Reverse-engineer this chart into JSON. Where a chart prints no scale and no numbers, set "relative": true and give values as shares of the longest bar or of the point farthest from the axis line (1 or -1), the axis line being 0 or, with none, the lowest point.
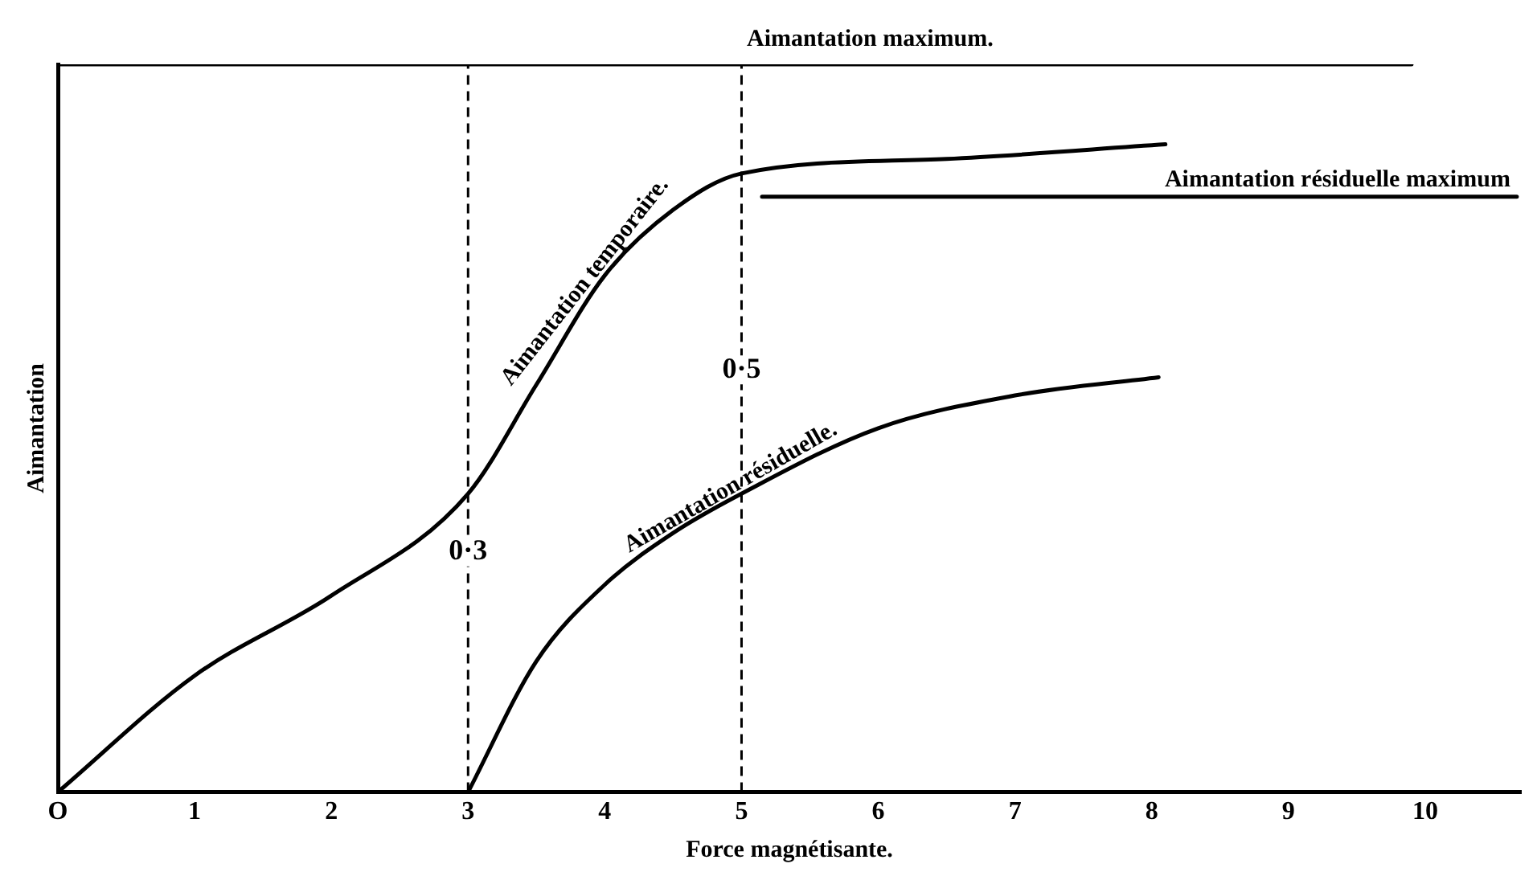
{
  "chart_data": {
    "type": "line",
    "relative": true,
    "xlabel": "Force magnétisante.",
    "ylabel": "Aimantation",
    "xlim": [
      0,
      10.7
    ],
    "xticks": [
      {
        "value": 0,
        "label": "O"
      },
      1,
      2,
      3,
      4,
      5,
      6,
      7,
      8,
      9,
      10
    ],
    "series": [
      {
        "name": "Aimantation temporaire.",
        "color": "#000000",
        "x": [
          0,
          1,
          2,
          3,
          3.5,
          4,
          4.5,
          5,
          6.5,
          8.1
        ],
        "values": [
          0,
          0.16,
          0.27,
          0.41,
          0.56,
          0.71,
          0.8,
          0.85,
          0.87,
          0.89
        ]
      },
      {
        "name": "Aimantation résiduelle.",
        "color": "#000000",
        "x": [
          3,
          3.5,
          4,
          4.5,
          5,
          6,
          7,
          8.05
        ],
        "values": [
          0,
          0.18,
          0.285,
          0.356,
          0.41,
          0.5,
          0.545,
          0.57
        ]
      },
      {
        "name": "Aimantation maximum.",
        "color": "#000000",
        "x": [
          0,
          9.9
        ],
        "values": [
          1,
          1
        ]
      },
      {
        "name": "Aimantation résiduelle maximum",
        "color": "#000000",
        "x": [
          5.15,
          10.67
        ],
        "values": [
          0.818,
          0.818
        ]
      }
    ],
    "ref_lines": [
      {
        "axis": "x",
        "value": 3,
        "label": "0·3",
        "line_style": "dashed"
      },
      {
        "axis": "x",
        "value": 5,
        "label": "0·5",
        "line_style": "dashed"
      }
    ],
    "grid": false,
    "legend": false,
    "marker": "none",
    "line_style": "solid"
  }
}
